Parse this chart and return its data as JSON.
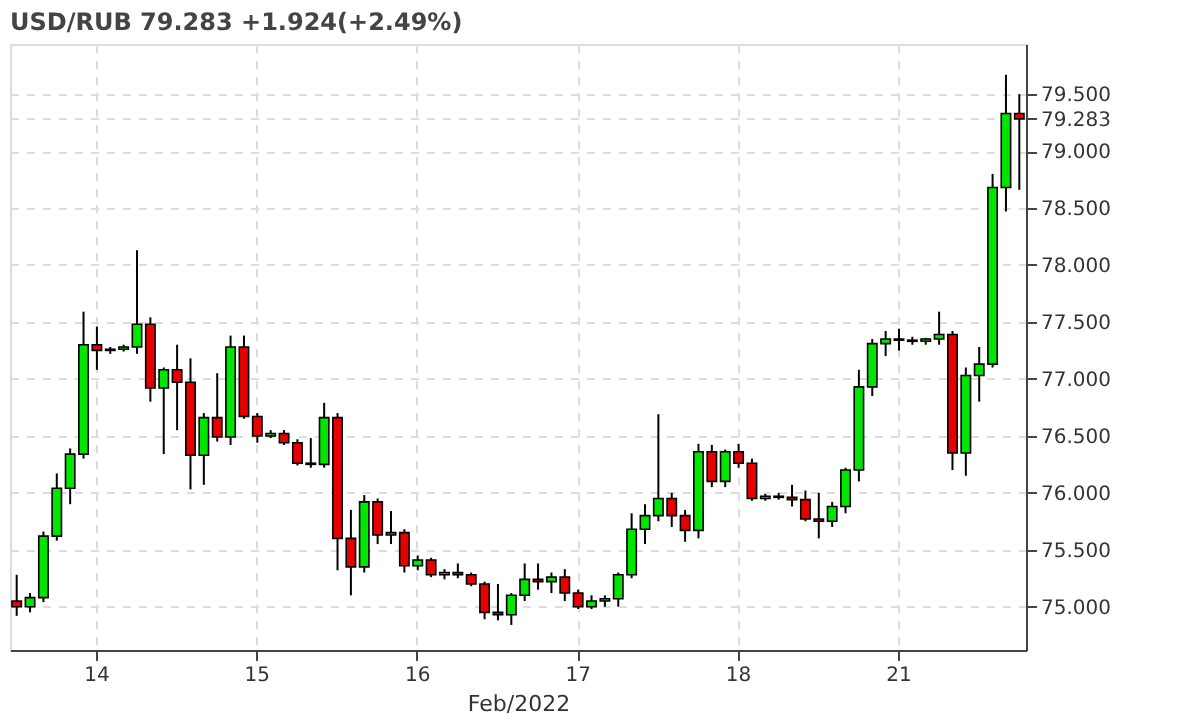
{
  "chart_data": {
    "type": "candlestick",
    "title": "USD/RUB 79.283 +1.924(+2.49%)",
    "xlabel": "Feb/2022",
    "categories": [
      null,
      null,
      null,
      null,
      null,
      null,
      "14",
      null,
      null,
      null,
      null,
      null,
      null,
      null,
      null,
      null,
      null,
      null,
      "15",
      null,
      null,
      null,
      null,
      null,
      null,
      null,
      null,
      null,
      null,
      null,
      "16",
      null,
      null,
      null,
      null,
      null,
      null,
      null,
      null,
      null,
      null,
      null,
      "17",
      null,
      null,
      null,
      null,
      null,
      null,
      null,
      null,
      null,
      null,
      null,
      "18",
      null,
      null,
      null,
      null,
      null,
      null,
      null,
      null,
      null,
      null,
      null,
      "21",
      null,
      null,
      null,
      null,
      null,
      null,
      null,
      null,
      null
    ],
    "ohlc": [
      [
        75.05,
        75.28,
        74.92,
        75.0
      ],
      [
        75.0,
        75.12,
        74.95,
        75.08
      ],
      [
        75.08,
        75.66,
        75.04,
        75.62
      ],
      [
        75.62,
        76.17,
        75.58,
        76.04
      ],
      [
        76.04,
        76.39,
        75.9,
        76.34
      ],
      [
        76.34,
        77.59,
        76.3,
        77.3
      ],
      [
        77.3,
        77.46,
        77.08,
        77.25
      ],
      [
        77.25,
        77.28,
        77.22,
        77.26
      ],
      [
        77.26,
        77.3,
        77.24,
        77.28
      ],
      [
        77.28,
        78.13,
        77.22,
        77.48
      ],
      [
        77.48,
        77.54,
        76.8,
        76.92
      ],
      [
        76.92,
        77.1,
        76.34,
        77.08
      ],
      [
        77.08,
        77.3,
        76.55,
        76.97
      ],
      [
        76.97,
        77.18,
        76.03,
        76.33
      ],
      [
        76.33,
        76.7,
        76.07,
        76.66
      ],
      [
        76.66,
        77.05,
        76.45,
        76.49
      ],
      [
        76.49,
        77.38,
        76.42,
        77.28
      ],
      [
        77.28,
        77.38,
        76.65,
        76.67
      ],
      [
        76.67,
        76.7,
        76.44,
        76.5
      ],
      [
        76.5,
        76.55,
        76.48,
        76.52
      ],
      [
        76.52,
        76.55,
        76.42,
        76.44
      ],
      [
        76.44,
        76.47,
        76.24,
        76.26
      ],
      [
        76.26,
        76.48,
        76.22,
        76.25
      ],
      [
        76.25,
        76.79,
        76.22,
        76.66
      ],
      [
        76.66,
        76.7,
        75.32,
        75.6
      ],
      [
        75.6,
        75.85,
        75.1,
        75.35
      ],
      [
        75.35,
        75.98,
        75.3,
        75.92
      ],
      [
        75.92,
        75.95,
        75.55,
        75.63
      ],
      [
        75.63,
        75.84,
        75.55,
        75.65
      ],
      [
        75.65,
        75.68,
        75.3,
        75.36
      ],
      [
        75.36,
        75.45,
        75.32,
        75.41
      ],
      [
        75.41,
        75.43,
        75.26,
        75.28
      ],
      [
        75.28,
        75.33,
        75.24,
        75.3
      ],
      [
        75.3,
        75.38,
        75.25,
        75.28
      ],
      [
        75.28,
        75.3,
        75.18,
        75.2
      ],
      [
        75.2,
        75.22,
        74.89,
        74.95
      ],
      [
        74.95,
        75.2,
        74.88,
        74.93
      ],
      [
        74.93,
        75.12,
        74.84,
        75.1
      ],
      [
        75.1,
        75.38,
        75.05,
        75.24
      ],
      [
        75.24,
        75.38,
        75.15,
        75.22
      ],
      [
        75.22,
        75.3,
        75.12,
        75.26
      ],
      [
        75.26,
        75.33,
        75.05,
        75.12
      ],
      [
        75.12,
        75.15,
        74.98,
        75.0
      ],
      [
        75.0,
        75.1,
        74.98,
        75.05
      ],
      [
        75.05,
        75.1,
        75.0,
        75.07
      ],
      [
        75.07,
        75.3,
        75.0,
        75.28
      ],
      [
        75.28,
        75.82,
        75.25,
        75.68
      ],
      [
        75.68,
        75.9,
        75.55,
        75.8
      ],
      [
        75.8,
        76.69,
        75.75,
        75.95
      ],
      [
        75.95,
        76.0,
        75.7,
        75.8
      ],
      [
        75.8,
        75.85,
        75.57,
        75.67
      ],
      [
        75.67,
        76.43,
        75.6,
        76.36
      ],
      [
        76.36,
        76.42,
        76.05,
        76.1
      ],
      [
        76.1,
        76.38,
        76.05,
        76.36
      ],
      [
        76.36,
        76.43,
        76.22,
        76.26
      ],
      [
        76.26,
        76.3,
        75.93,
        75.95
      ],
      [
        75.95,
        75.99,
        75.93,
        75.97
      ],
      [
        75.97,
        76.0,
        75.94,
        75.96
      ],
      [
        75.96,
        76.07,
        75.88,
        75.94
      ],
      [
        75.94,
        76.02,
        75.75,
        75.77
      ],
      [
        75.77,
        76.0,
        75.6,
        75.75
      ],
      [
        75.75,
        75.92,
        75.7,
        75.88
      ],
      [
        75.88,
        76.22,
        75.82,
        76.2
      ],
      [
        76.2,
        77.08,
        76.1,
        76.93
      ],
      [
        76.93,
        77.35,
        76.85,
        77.31
      ],
      [
        77.31,
        77.42,
        77.2,
        77.35
      ],
      [
        77.35,
        77.44,
        77.25,
        77.34
      ],
      [
        77.34,
        77.37,
        77.3,
        77.33
      ],
      [
        77.33,
        77.36,
        77.3,
        77.35
      ],
      [
        77.35,
        77.59,
        77.3,
        77.39
      ],
      [
        77.39,
        77.42,
        76.2,
        76.35
      ],
      [
        76.35,
        77.1,
        76.15,
        77.03
      ],
      [
        77.03,
        77.28,
        76.8,
        77.13
      ],
      [
        77.13,
        78.8,
        77.1,
        78.68
      ],
      [
        78.68,
        79.67,
        78.47,
        79.33
      ],
      [
        79.33,
        79.5,
        78.66,
        79.283
      ]
    ],
    "colors": [
      "#e60000",
      "#00e600",
      "#00e600",
      "#00e600",
      "#00e600",
      "#00e600",
      "#e60000",
      "#00e600",
      "#00e600",
      "#00e600",
      "#e60000",
      "#00e600",
      "#e60000",
      "#e60000",
      "#00e600",
      "#e60000",
      "#00e600",
      "#e60000",
      "#e60000",
      "#00e600",
      "#e60000",
      "#e60000",
      "#e60000",
      "#00e600",
      "#e60000",
      "#e60000",
      "#00e600",
      "#e60000",
      "#00e600",
      "#e60000",
      "#00e600",
      "#e60000",
      "#00e600",
      "#e60000",
      "#e60000",
      "#e60000",
      "#e60000",
      "#00e600",
      "#00e600",
      "#e60000",
      "#00e600",
      "#e60000",
      "#e60000",
      "#00e600",
      "#00e600",
      "#00e600",
      "#00e600",
      "#00e600",
      "#00e600",
      "#e60000",
      "#e60000",
      "#00e600",
      "#e60000",
      "#00e600",
      "#e60000",
      "#e60000",
      "#00e600",
      "#e60000",
      "#e60000",
      "#e60000",
      "#e60000",
      "#00e600",
      "#00e600",
      "#00e600",
      "#00e600",
      "#00e600",
      "#e60000",
      "#e60000",
      "#00e600",
      "#00e600",
      "#e60000",
      "#00e600",
      "#00e600",
      "#00e600",
      "#00e600",
      "#e60000"
    ],
    "ylim": [
      74.62,
      79.94
    ],
    "yticks": [
      {
        "value": 75.0,
        "label": "75.000"
      },
      {
        "value": 75.5,
        "label": "75.500"
      },
      {
        "value": 76.0,
        "label": "76.000"
      },
      {
        "value": 76.5,
        "label": "76.500"
      },
      {
        "value": 77.0,
        "label": "77.000"
      },
      {
        "value": 77.5,
        "label": "77.500"
      },
      {
        "value": 78.0,
        "label": "78.000"
      },
      {
        "value": 78.5,
        "label": "78.500"
      },
      {
        "value": 79.0,
        "label": "79.000"
      },
      {
        "value": 79.5,
        "label": "79.500"
      },
      {
        "value": 79.283,
        "label": "79.283"
      }
    ],
    "grid": true
  }
}
